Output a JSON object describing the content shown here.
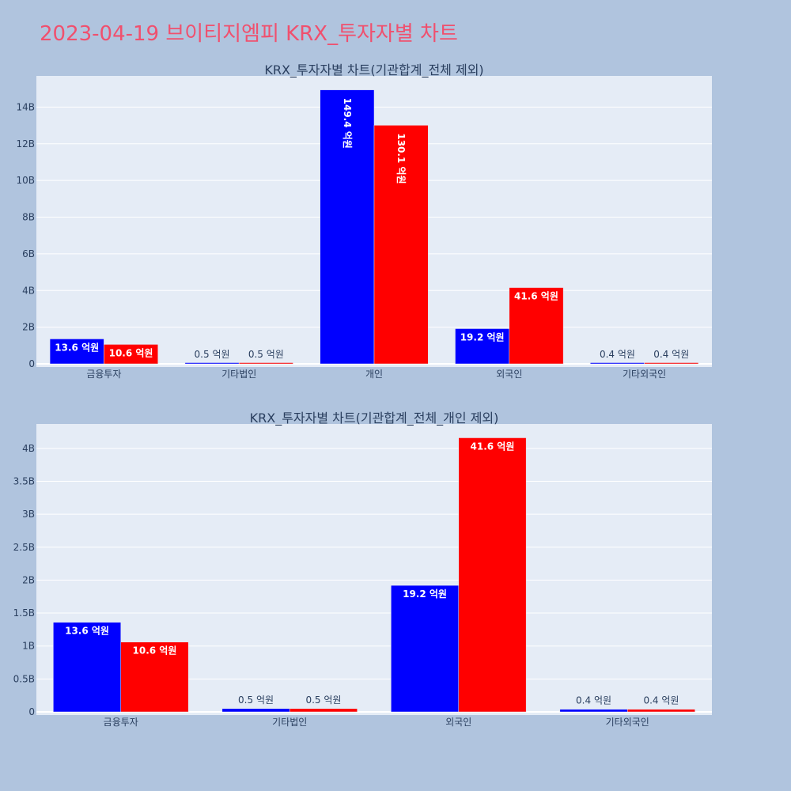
{
  "page_title": "2023-04-19 브이티지엠피 KRX_투자자별 차트",
  "colors": {
    "series1": "#0000ff",
    "series2": "#ff0000",
    "background": "#b0c4de",
    "plot_bg": "#e5ecf6",
    "title": "#f0506e"
  },
  "chart_data": [
    {
      "type": "bar",
      "title": "KRX_투자자별 차트(기관합계_전체 제외)",
      "categories": [
        "금융투자",
        "기타법인",
        "개인",
        "외국인",
        "기타외국인"
      ],
      "series": [
        {
          "values": [
            1.36,
            0.05,
            14.94,
            1.92,
            0.04
          ],
          "labels": [
            "13.6 억원",
            "0.5 억원",
            "149.4 억원",
            "19.2 억원",
            "0.4 억원"
          ],
          "color": "#0000ff"
        },
        {
          "values": [
            1.06,
            0.05,
            13.01,
            4.16,
            0.04
          ],
          "labels": [
            "10.6 억원",
            "0.5 억원",
            "130.1 억원",
            "41.6 억원",
            "0.4 억원"
          ],
          "color": "#ff0000"
        }
      ],
      "yticks": [
        0,
        2,
        4,
        6,
        8,
        10,
        12,
        14
      ],
      "ytick_labels": [
        "0",
        "2B",
        "4B",
        "6B",
        "8B",
        "10B",
        "12B",
        "14B"
      ],
      "ylim": [
        0,
        15.7
      ],
      "grid": true
    },
    {
      "type": "bar",
      "title": "KRX_투자자별 차트(기관합계_전체_개인 제외)",
      "categories": [
        "금융투자",
        "기타법인",
        "외국인",
        "기타외국인"
      ],
      "series": [
        {
          "values": [
            1.36,
            0.05,
            1.92,
            0.04
          ],
          "labels": [
            "13.6 억원",
            "0.5 억원",
            "19.2 억원",
            "0.4 억원"
          ],
          "color": "#0000ff"
        },
        {
          "values": [
            1.06,
            0.05,
            4.16,
            0.04
          ],
          "labels": [
            "10.6 억원",
            "0.5 억원",
            "41.6 억원",
            "0.4 억원"
          ],
          "color": "#ff0000"
        }
      ],
      "yticks": [
        0,
        0.5,
        1,
        1.5,
        2,
        2.5,
        3,
        3.5,
        4
      ],
      "ytick_labels": [
        "0",
        "0.5B",
        "1B",
        "1.5B",
        "2B",
        "2.5B",
        "3B",
        "3.5B",
        "4B"
      ],
      "ylim": [
        0,
        4.37
      ],
      "grid": true
    }
  ]
}
